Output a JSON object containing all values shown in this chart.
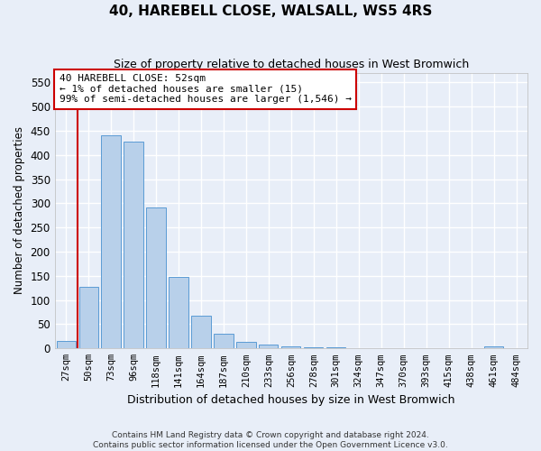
{
  "title": "40, HAREBELL CLOSE, WALSALL, WS5 4RS",
  "subtitle": "Size of property relative to detached houses in West Bromwich",
  "xlabel": "Distribution of detached houses by size in West Bromwich",
  "ylabel": "Number of detached properties",
  "bar_color": "#b8d0ea",
  "bar_edge_color": "#5b9bd5",
  "categories": [
    "27sqm",
    "50sqm",
    "73sqm",
    "96sqm",
    "118sqm",
    "141sqm",
    "164sqm",
    "187sqm",
    "210sqm",
    "233sqm",
    "256sqm",
    "278sqm",
    "301sqm",
    "324sqm",
    "347sqm",
    "370sqm",
    "393sqm",
    "415sqm",
    "438sqm",
    "461sqm",
    "484sqm"
  ],
  "values": [
    15,
    128,
    440,
    427,
    292,
    148,
    68,
    30,
    13,
    8,
    5,
    3,
    2,
    1,
    1,
    1,
    1,
    1,
    0,
    5,
    0
  ],
  "ylim": [
    0,
    570
  ],
  "yticks": [
    0,
    50,
    100,
    150,
    200,
    250,
    300,
    350,
    400,
    450,
    500,
    550
  ],
  "vline_color": "#cc0000",
  "annotation_text": "40 HAREBELL CLOSE: 52sqm\n← 1% of detached houses are smaller (15)\n99% of semi-detached houses are larger (1,546) →",
  "annotation_box_color": "#ffffff",
  "annotation_box_edge": "#cc0000",
  "footer1": "Contains HM Land Registry data © Crown copyright and database right 2024.",
  "footer2": "Contains public sector information licensed under the Open Government Licence v3.0.",
  "background_color": "#e8eef8",
  "grid_color": "#ffffff"
}
